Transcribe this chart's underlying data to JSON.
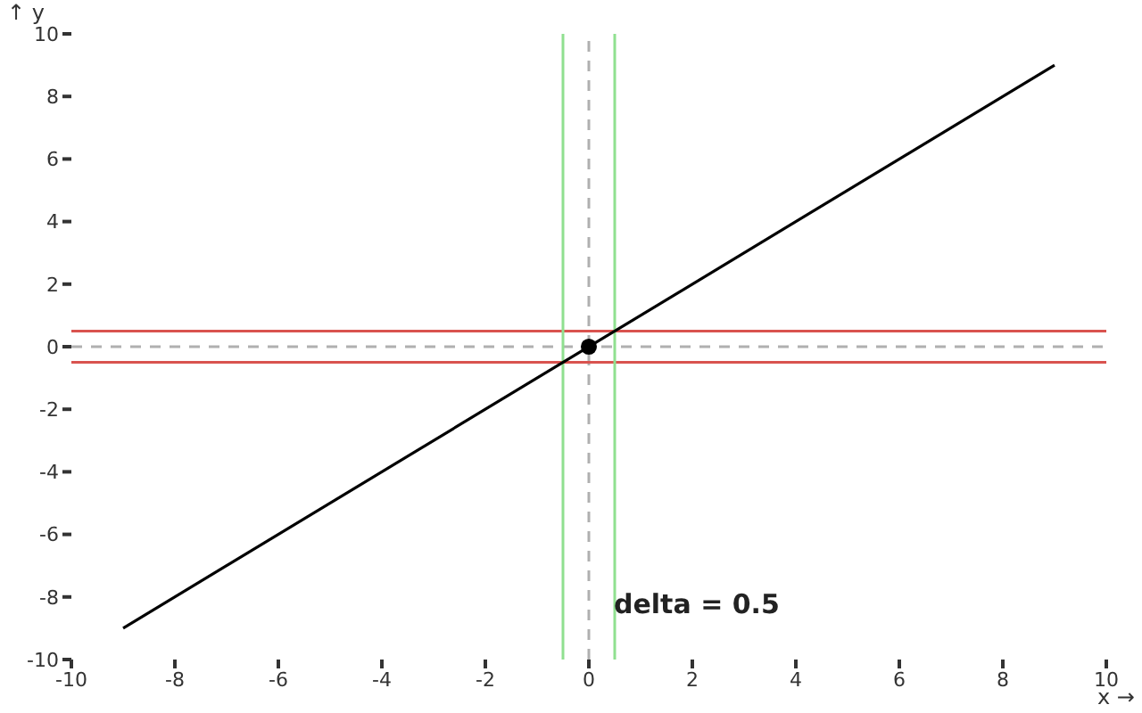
{
  "chart_data": {
    "type": "line",
    "xlabel": "x →",
    "ylabel": "↑ y",
    "series": [
      {
        "color": "#000000",
        "x": [
          -9,
          9
        ],
        "values": [
          -9,
          9
        ]
      },
      {
        "type": "scatter",
        "color": "#000000",
        "x": [
          0
        ],
        "values": [
          0
        ]
      }
    ],
    "xlim": [
      -10,
      10
    ],
    "xticks": [
      -10,
      -8,
      -6,
      -4,
      -2,
      0,
      2,
      4,
      6,
      8,
      10
    ],
    "ylim": [
      -10,
      10
    ],
    "yticks": [
      -10,
      -8,
      -6,
      -4,
      -2,
      0,
      2,
      4,
      6,
      8,
      10
    ],
    "ref_lines": [
      {
        "axis": "x",
        "value": 0,
        "color": "#b0b0b0",
        "line_style": "dashed"
      },
      {
        "axis": "y",
        "value": 0,
        "color": "#b0b0b0",
        "line_style": "dashed"
      },
      {
        "axis": "y",
        "value": 0.5,
        "color": "#d9534f",
        "line_style": "solid"
      },
      {
        "axis": "y",
        "value": -0.5,
        "color": "#d9534f",
        "line_style": "solid"
      },
      {
        "axis": "x",
        "value": 0.5,
        "color": "#90e090",
        "line_style": "solid"
      },
      {
        "axis": "x",
        "value": -0.5,
        "color": "#90e090",
        "line_style": "solid"
      }
    ],
    "annotations": [
      "delta = 0.5"
    ],
    "grid": false
  }
}
